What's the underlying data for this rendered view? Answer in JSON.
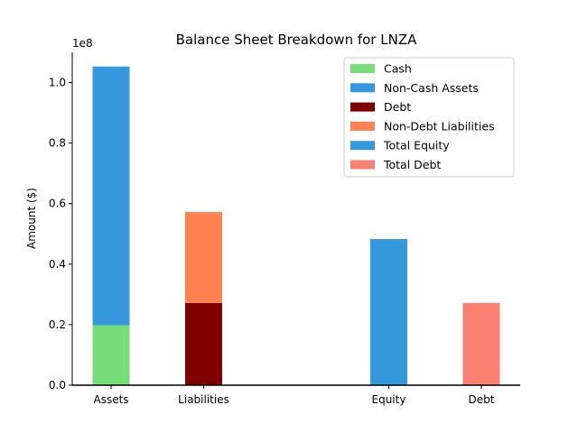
{
  "chart_data": {
    "type": "bar",
    "stacked": true,
    "title": "Balance Sheet Breakdown for LNZA",
    "xlabel": "",
    "ylabel": "Amount ($)",
    "y_offset_text": "1e8",
    "ylim": [
      0,
      1.1
    ],
    "y_ticks": [
      "0.0",
      "0.2",
      "0.4",
      "0.6",
      "0.8",
      "1.0"
    ],
    "categories": [
      "Assets",
      "Liabilities",
      "Equity",
      "Debt"
    ],
    "category_positions": [
      0,
      1,
      3,
      4
    ],
    "series": [
      {
        "name": "Cash",
        "color": "#77dd77",
        "category": "Assets",
        "base": 0,
        "value": 0.198
      },
      {
        "name": "Non-Cash Assets",
        "color": "#3799dd",
        "category": "Assets",
        "base": 0.198,
        "value": 0.855
      },
      {
        "name": "Debt",
        "color": "#800000",
        "category": "Liabilities",
        "base": 0,
        "value": 0.272
      },
      {
        "name": "Non-Debt Liabilities",
        "color": "#ff8050",
        "category": "Liabilities",
        "base": 0.272,
        "value": 0.3
      },
      {
        "name": "Total Equity",
        "color": "#3799dd",
        "category": "Equity",
        "base": 0,
        "value": 0.483
      },
      {
        "name": "Total Debt",
        "color": "#fa8072",
        "category": "Debt",
        "base": 0,
        "value": 0.272
      }
    ],
    "legend_position": "top-right",
    "grid": false
  }
}
